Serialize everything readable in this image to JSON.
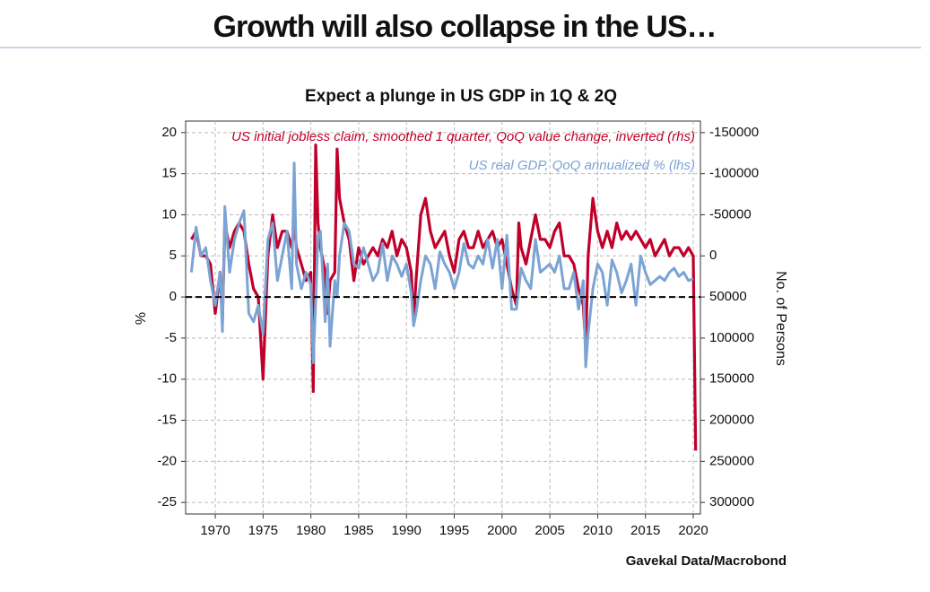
{
  "header": {
    "title": "Growth will also collapse in the US…"
  },
  "chart_data": {
    "type": "line",
    "title": "Expect a plunge in US GDP in 1Q & 2Q",
    "ylabel": "%",
    "y2label": "No. of Persons",
    "source": "Gavekal Data/Macrobond",
    "x": [
      1967.5,
      1968,
      1968.5,
      1969,
      1969.5,
      1970,
      1970.5,
      1970.75,
      1971,
      1971.5,
      1972,
      1972.5,
      1973,
      1973.5,
      1974,
      1974.5,
      1975,
      1975.5,
      1976,
      1976.5,
      1977,
      1977.5,
      1978,
      1978.25,
      1978.5,
      1979,
      1979.5,
      1980,
      1980.25,
      1980.5,
      1980.75,
      1981,
      1981.5,
      1981.75,
      1982,
      1982.5,
      1982.75,
      1983,
      1983.5,
      1984,
      1984.5,
      1985,
      1985.5,
      1986,
      1986.5,
      1987,
      1987.5,
      1988,
      1988.5,
      1989,
      1989.5,
      1990,
      1990.5,
      1990.75,
      1991,
      1991.5,
      1992,
      1992.5,
      1993,
      1993.5,
      1994,
      1994.5,
      1995,
      1995.5,
      1996,
      1996.5,
      1997,
      1997.5,
      1998,
      1998.5,
      1999,
      1999.5,
      2000,
      2000.5,
      2001,
      2001.5,
      2001.75,
      2002,
      2002.5,
      2003,
      2003.5,
      2004,
      2004.5,
      2005,
      2005.5,
      2006,
      2006.5,
      2007,
      2007.5,
      2008,
      2008.5,
      2008.75,
      2009,
      2009.5,
      2010,
      2010.5,
      2011,
      2011.5,
      2012,
      2012.5,
      2013,
      2013.5,
      2014,
      2014.5,
      2015,
      2015.5,
      2016,
      2016.5,
      2017,
      2017.5,
      2018,
      2018.5,
      2019,
      2019.5,
      2020,
      2020.25
    ],
    "series": [
      {
        "name": "US initial jobless claim, smoothed 1 quarter, QoQ value change, inverted (rhs)",
        "color": "#c0002a",
        "axis": "y2",
        "values": [
          -20000,
          -30000,
          0,
          0,
          10000,
          70000,
          20000,
          80000,
          -40000,
          -10000,
          -30000,
          -40000,
          -30000,
          10000,
          40000,
          50000,
          150000,
          0,
          -50000,
          -10000,
          -30000,
          -30000,
          -10000,
          -40000,
          -10000,
          10000,
          30000,
          20000,
          165000,
          -135000,
          -40000,
          -10000,
          20000,
          70000,
          30000,
          20000,
          -130000,
          -70000,
          -40000,
          -20000,
          30000,
          -10000,
          10000,
          0,
          -10000,
          0,
          -20000,
          -10000,
          -30000,
          0,
          -20000,
          -10000,
          20000,
          80000,
          30000,
          -50000,
          -70000,
          -30000,
          -10000,
          -20000,
          -30000,
          0,
          20000,
          -20000,
          -30000,
          -10000,
          -10000,
          -30000,
          -10000,
          -20000,
          -30000,
          -10000,
          -20000,
          10000,
          40000,
          60000,
          -40000,
          -10000,
          10000,
          -20000,
          -50000,
          -20000,
          -20000,
          -10000,
          -30000,
          -40000,
          0,
          0,
          10000,
          40000,
          60000,
          110000,
          0,
          -70000,
          -30000,
          -10000,
          -30000,
          -10000,
          -40000,
          -20000,
          -30000,
          -20000,
          -30000,
          -20000,
          -10000,
          -20000,
          0,
          -10000,
          -20000,
          0,
          -10000,
          -10000,
          0,
          -10000,
          0,
          237000
        ]
      },
      {
        "name": "US real GDP, QoQ annualized % (lhs)",
        "color": "#7ba3d3",
        "values": [
          3,
          8.5,
          5,
          6,
          2,
          -1,
          3,
          -4.2,
          11,
          3,
          7,
          9,
          10.5,
          -2,
          -3,
          -1,
          -4.5,
          7,
          9,
          2,
          5,
          8,
          1,
          16.3,
          4,
          1,
          3,
          1.5,
          -8,
          -0.5,
          7.5,
          8,
          -3,
          4,
          -6,
          2,
          0,
          5,
          9,
          8,
          4,
          3.5,
          6,
          4,
          2,
          3,
          6.5,
          2,
          5,
          4,
          2.5,
          4,
          0.5,
          -3.5,
          -2,
          2,
          5,
          4,
          1,
          5.5,
          4,
          3,
          1,
          3,
          6.5,
          4,
          3.5,
          5,
          4,
          7,
          3.5,
          7,
          1,
          7.5,
          -1.5,
          -1.5,
          1,
          3.5,
          2,
          1,
          7,
          3,
          3.5,
          4,
          3,
          5,
          1,
          1,
          3,
          -1.5,
          2,
          -8.5,
          -4.5,
          1,
          4,
          3,
          -1,
          4.5,
          3,
          0.5,
          2,
          4,
          -1,
          5,
          3,
          1.5,
          2,
          2.5,
          2,
          3,
          3.5,
          2.5,
          3,
          2,
          2.2,
          null
        ]
      }
    ],
    "xlim": [
      1966.9,
      2020.75
    ],
    "xticks": [
      1970,
      1975,
      1980,
      1985,
      1990,
      1995,
      2000,
      2005,
      2010,
      2015,
      2020
    ],
    "ylim": [
      -26.4,
      21.4
    ],
    "yticks": [
      -25,
      -20,
      -15,
      -10,
      -5,
      0,
      5,
      10,
      15,
      20
    ],
    "y2lim": [
      -164000,
      314000
    ],
    "y2_inverted": true,
    "y2ticks": [
      -150000,
      -100000,
      -50000,
      0,
      50000,
      100000,
      150000,
      200000,
      250000,
      300000
    ],
    "hline": 0,
    "grid": true,
    "legend": "top-right"
  }
}
